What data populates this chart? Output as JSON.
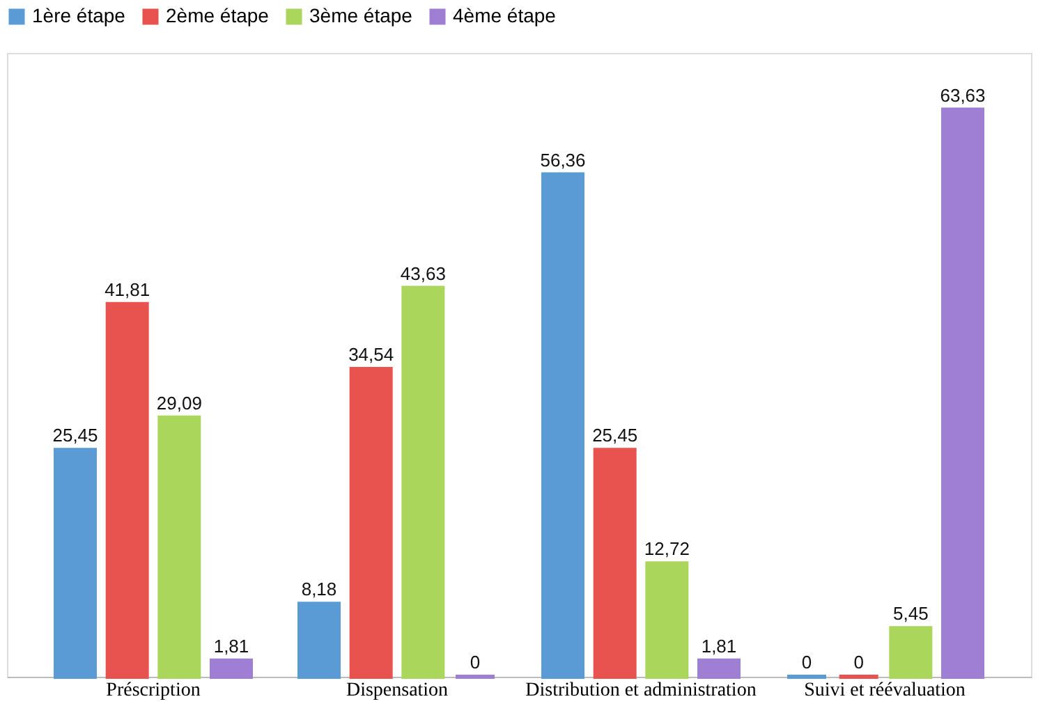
{
  "chart_data": {
    "type": "bar",
    "categories": [
      "Préscription",
      "Dispensation",
      "Distribution et administration",
      "Suivi et réévaluation"
    ],
    "series": [
      {
        "name": "1ère étape",
        "color": "#5b9bd5",
        "values": [
          25.45,
          8.18,
          56.36,
          0
        ],
        "value_labels": [
          "25,45",
          "8,18",
          "56,36",
          "0"
        ]
      },
      {
        "name": "2ème étape",
        "color": "#e8534f",
        "values": [
          41.81,
          34.54,
          25.45,
          0
        ],
        "value_labels": [
          "41,81",
          "34,54",
          "25,45",
          "0"
        ]
      },
      {
        "name": "3ème étape",
        "color": "#a9d65b",
        "values": [
          29.09,
          43.63,
          12.72,
          5.45
        ],
        "value_labels": [
          "29,09",
          "43,63",
          "12,72",
          "5,45"
        ]
      },
      {
        "name": "4ème étape",
        "color": "#9e7fd4",
        "values": [
          1.81,
          0,
          1.81,
          63.63
        ],
        "value_labels": [
          "1,81",
          "0",
          "1,81",
          "63,63"
        ]
      }
    ],
    "ylim": [
      0,
      70
    ],
    "tick_labels": "x",
    "legend": "top",
    "grid": false
  }
}
